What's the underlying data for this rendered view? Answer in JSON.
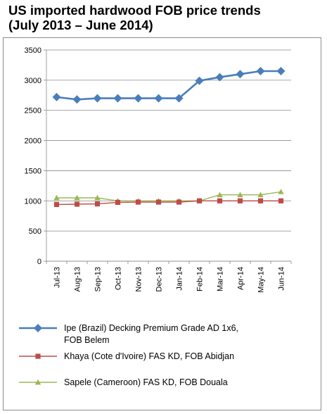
{
  "chart_data": {
    "type": "line",
    "title_lines": [
      "US imported hardwood FOB price trends",
      "(July 2013 – June 2014)"
    ],
    "categories": [
      "Jul-13",
      "Aug-13",
      "Sep-13",
      "Oct-13",
      "Nov-13",
      "Dec-13",
      "Jan-14",
      "Feb-14",
      "Mar-14",
      "Apr-14",
      "May-14",
      "Jun-14"
    ],
    "ylim": [
      0,
      3500
    ],
    "yticks": [
      "0",
      "500",
      "1000",
      "1500",
      "2000",
      "2500",
      "3000",
      "3500"
    ],
    "grid": "horizontal",
    "legend_position": "bottom",
    "series": [
      {
        "name_lines": [
          "Ipe (Brazil) Decking Premium Grade AD 1x6,",
          "FOB Belem"
        ],
        "color": "#4a7ebb",
        "marker": "diamond",
        "values": [
          2720,
          2680,
          2700,
          2700,
          2700,
          2700,
          2700,
          2990,
          3050,
          3100,
          3150,
          3150
        ]
      },
      {
        "name_lines": [
          "Khaya (Cote d'Ivoire) FAS KD, FOB Abidjan"
        ],
        "color": "#be4b48",
        "marker": "square",
        "values": [
          940,
          945,
          950,
          975,
          980,
          980,
          980,
          1000,
          1000,
          1000,
          1000,
          1000
        ]
      },
      {
        "name_lines": [
          "Sapele (Cameroon) FAS KD, FOB Douala"
        ],
        "color": "#98b954",
        "marker": "triangle",
        "values": [
          1050,
          1050,
          1050,
          1000,
          1000,
          1000,
          1000,
          1000,
          1100,
          1100,
          1100,
          1150
        ]
      }
    ]
  }
}
